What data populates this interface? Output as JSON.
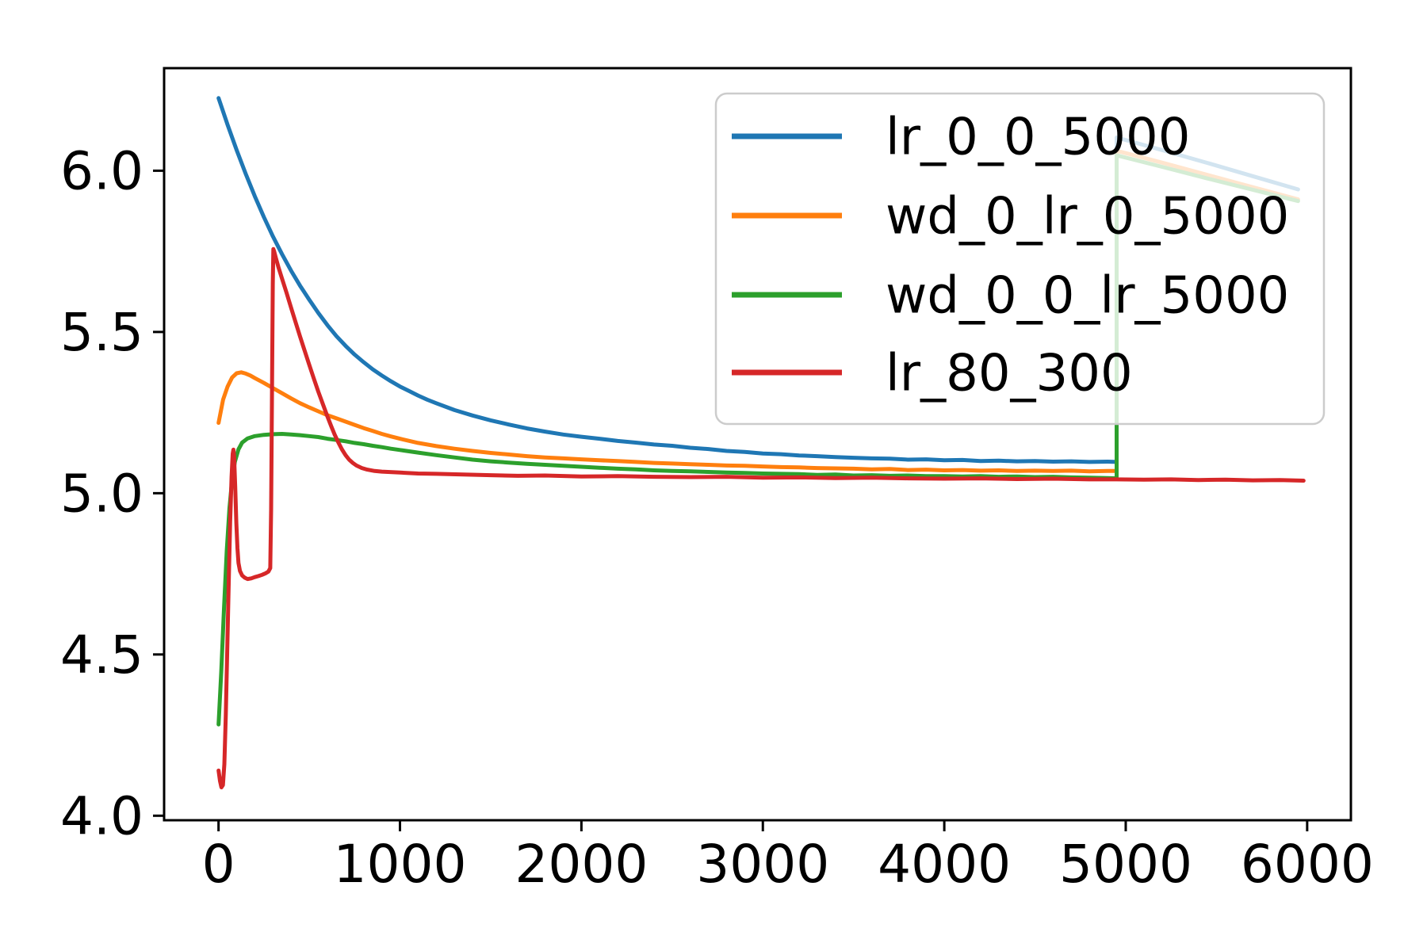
{
  "chart_data": {
    "type": "line",
    "title": "",
    "xlabel": "",
    "ylabel": "",
    "grid": false,
    "xlim": [
      -300,
      6241
    ],
    "ylim": [
      3.986,
      6.318
    ],
    "x_ticks": {
      "values": [
        0,
        1000,
        2000,
        3000,
        4000,
        5000,
        6000
      ],
      "labels": [
        "0",
        "1000",
        "2000",
        "3000",
        "4000",
        "5000",
        "6000"
      ]
    },
    "y_ticks": {
      "values": [
        4.0,
        4.5,
        5.0,
        5.5,
        6.0
      ],
      "labels": [
        "4.0",
        "4.5",
        "5.0",
        "5.5",
        "6.0"
      ]
    },
    "legend": {
      "position": "upper right",
      "frame_alpha": 0.8,
      "edge_color": "#cccccc",
      "entries": [
        "lr_0_0_5000",
        "wd_0_lr_0_5000",
        "wd_0_0_lr_5000",
        "lr_80_300"
      ]
    },
    "series": [
      {
        "name": "lr_0_0_5000",
        "color": "#1f77b4",
        "points": [
          [
            0,
            6.225
          ],
          [
            50,
            6.142
          ],
          [
            100,
            6.064
          ],
          [
            150,
            5.99
          ],
          [
            200,
            5.921
          ],
          [
            250,
            5.856
          ],
          [
            300,
            5.796
          ],
          [
            350,
            5.741
          ],
          [
            400,
            5.69
          ],
          [
            450,
            5.643
          ],
          [
            500,
            5.6
          ],
          [
            550,
            5.559
          ],
          [
            600,
            5.521
          ],
          [
            650,
            5.487
          ],
          [
            700,
            5.457
          ],
          [
            750,
            5.43
          ],
          [
            800,
            5.406
          ],
          [
            850,
            5.384
          ],
          [
            900,
            5.365
          ],
          [
            950,
            5.347
          ],
          [
            1000,
            5.331
          ],
          [
            1050,
            5.317
          ],
          [
            1100,
            5.303
          ],
          [
            1150,
            5.29
          ],
          [
            1200,
            5.279
          ],
          [
            1300,
            5.258
          ],
          [
            1400,
            5.241
          ],
          [
            1500,
            5.226
          ],
          [
            1600,
            5.213
          ],
          [
            1700,
            5.201
          ],
          [
            1800,
            5.191
          ],
          [
            1900,
            5.182
          ],
          [
            2000,
            5.175
          ],
          [
            2100,
            5.169
          ],
          [
            2200,
            5.162
          ],
          [
            2300,
            5.157
          ],
          [
            2400,
            5.151
          ],
          [
            2500,
            5.147
          ],
          [
            2600,
            5.141
          ],
          [
            2700,
            5.137
          ],
          [
            2800,
            5.131
          ],
          [
            2900,
            5.128
          ],
          [
            3000,
            5.123
          ],
          [
            3100,
            5.121
          ],
          [
            3200,
            5.117
          ],
          [
            3300,
            5.115
          ],
          [
            3400,
            5.112
          ],
          [
            3500,
            5.11
          ],
          [
            3600,
            5.108
          ],
          [
            3700,
            5.107
          ],
          [
            3800,
            5.104
          ],
          [
            3900,
            5.105
          ],
          [
            4000,
            5.102
          ],
          [
            4100,
            5.103
          ],
          [
            4200,
            5.1
          ],
          [
            4300,
            5.101
          ],
          [
            4400,
            5.099
          ],
          [
            4500,
            5.1
          ],
          [
            4600,
            5.098
          ],
          [
            4700,
            5.099
          ],
          [
            4800,
            5.097
          ],
          [
            4900,
            5.098
          ],
          [
            4950,
            5.097
          ],
          [
            4950,
            6.103
          ],
          [
            5200,
            6.064
          ],
          [
            5450,
            6.024
          ],
          [
            5700,
            5.983
          ],
          [
            5950,
            5.942
          ]
        ]
      },
      {
        "name": "wd_0_lr_0_5000",
        "color": "#ff7f0e",
        "points": [
          [
            0,
            5.218
          ],
          [
            25,
            5.29
          ],
          [
            50,
            5.331
          ],
          [
            75,
            5.359
          ],
          [
            100,
            5.372
          ],
          [
            125,
            5.375
          ],
          [
            150,
            5.371
          ],
          [
            175,
            5.365
          ],
          [
            200,
            5.357
          ],
          [
            250,
            5.342
          ],
          [
            300,
            5.326
          ],
          [
            350,
            5.31
          ],
          [
            400,
            5.294
          ],
          [
            450,
            5.279
          ],
          [
            500,
            5.266
          ],
          [
            550,
            5.254
          ],
          [
            600,
            5.242
          ],
          [
            650,
            5.232
          ],
          [
            700,
            5.222
          ],
          [
            750,
            5.212
          ],
          [
            800,
            5.202
          ],
          [
            850,
            5.193
          ],
          [
            900,
            5.184
          ],
          [
            950,
            5.176
          ],
          [
            1000,
            5.169
          ],
          [
            1100,
            5.156
          ],
          [
            1200,
            5.146
          ],
          [
            1300,
            5.138
          ],
          [
            1400,
            5.131
          ],
          [
            1500,
            5.125
          ],
          [
            1600,
            5.12
          ],
          [
            1700,
            5.115
          ],
          [
            1800,
            5.111
          ],
          [
            1900,
            5.108
          ],
          [
            2000,
            5.105
          ],
          [
            2100,
            5.102
          ],
          [
            2200,
            5.1
          ],
          [
            2300,
            5.097
          ],
          [
            2400,
            5.094
          ],
          [
            2500,
            5.092
          ],
          [
            2600,
            5.09
          ],
          [
            2700,
            5.088
          ],
          [
            2800,
            5.086
          ],
          [
            2900,
            5.085
          ],
          [
            3000,
            5.083
          ],
          [
            3100,
            5.081
          ],
          [
            3200,
            5.08
          ],
          [
            3300,
            5.078
          ],
          [
            3400,
            5.077
          ],
          [
            3500,
            5.076
          ],
          [
            3600,
            5.074
          ],
          [
            3700,
            5.075
          ],
          [
            3800,
            5.072
          ],
          [
            3900,
            5.073
          ],
          [
            4000,
            5.071
          ],
          [
            4100,
            5.072
          ],
          [
            4200,
            5.07
          ],
          [
            4300,
            5.071
          ],
          [
            4400,
            5.069
          ],
          [
            4500,
            5.07
          ],
          [
            4600,
            5.069
          ],
          [
            4700,
            5.07
          ],
          [
            4800,
            5.068
          ],
          [
            4900,
            5.069
          ],
          [
            4950,
            5.069
          ],
          [
            4950,
            6.062
          ],
          [
            5200,
            6.025
          ],
          [
            5450,
            5.987
          ],
          [
            5700,
            5.949
          ],
          [
            5950,
            5.911
          ]
        ]
      },
      {
        "name": "wd_0_0_lr_5000",
        "color": "#2ca02c",
        "points": [
          [
            0,
            4.283
          ],
          [
            15,
            4.447
          ],
          [
            30,
            4.64
          ],
          [
            45,
            4.821
          ],
          [
            60,
            4.953
          ],
          [
            75,
            5.042
          ],
          [
            90,
            5.098
          ],
          [
            110,
            5.136
          ],
          [
            130,
            5.157
          ],
          [
            160,
            5.17
          ],
          [
            200,
            5.177
          ],
          [
            250,
            5.181
          ],
          [
            300,
            5.183
          ],
          [
            350,
            5.184
          ],
          [
            400,
            5.182
          ],
          [
            450,
            5.18
          ],
          [
            500,
            5.177
          ],
          [
            550,
            5.174
          ],
          [
            600,
            5.169
          ],
          [
            650,
            5.165
          ],
          [
            700,
            5.161
          ],
          [
            750,
            5.156
          ],
          [
            800,
            5.152
          ],
          [
            850,
            5.147
          ],
          [
            900,
            5.143
          ],
          [
            950,
            5.138
          ],
          [
            1000,
            5.134
          ],
          [
            1100,
            5.126
          ],
          [
            1200,
            5.118
          ],
          [
            1300,
            5.111
          ],
          [
            1400,
            5.104
          ],
          [
            1500,
            5.099
          ],
          [
            1600,
            5.095
          ],
          [
            1700,
            5.091
          ],
          [
            1800,
            5.088
          ],
          [
            1900,
            5.085
          ],
          [
            2000,
            5.082
          ],
          [
            2100,
            5.079
          ],
          [
            2200,
            5.076
          ],
          [
            2300,
            5.074
          ],
          [
            2400,
            5.071
          ],
          [
            2500,
            5.069
          ],
          [
            2600,
            5.068
          ],
          [
            2700,
            5.066
          ],
          [
            2800,
            5.064
          ],
          [
            2900,
            5.063
          ],
          [
            3000,
            5.061
          ],
          [
            3100,
            5.06
          ],
          [
            3200,
            5.059
          ],
          [
            3300,
            5.057
          ],
          [
            3400,
            5.058
          ],
          [
            3500,
            5.055
          ],
          [
            3600,
            5.056
          ],
          [
            3700,
            5.054
          ],
          [
            3800,
            5.055
          ],
          [
            3900,
            5.053
          ],
          [
            4000,
            5.053
          ],
          [
            4100,
            5.052
          ],
          [
            4200,
            5.053
          ],
          [
            4300,
            5.051
          ],
          [
            4400,
            5.052
          ],
          [
            4500,
            5.05
          ],
          [
            4600,
            5.051
          ],
          [
            4700,
            5.049
          ],
          [
            4800,
            5.048
          ],
          [
            4900,
            5.047
          ],
          [
            4950,
            5.046
          ],
          [
            4950,
            6.048
          ],
          [
            5200,
            6.012
          ],
          [
            5450,
            5.976
          ],
          [
            5700,
            5.941
          ],
          [
            5950,
            5.906
          ]
        ]
      },
      {
        "name": "lr_80_300",
        "color": "#d62728",
        "points": [
          [
            0,
            4.14
          ],
          [
            8,
            4.108
          ],
          [
            16,
            4.088
          ],
          [
            24,
            4.095
          ],
          [
            32,
            4.16
          ],
          [
            40,
            4.31
          ],
          [
            48,
            4.51
          ],
          [
            56,
            4.72
          ],
          [
            64,
            4.91
          ],
          [
            72,
            5.05
          ],
          [
            78,
            5.122
          ],
          [
            82,
            5.135
          ],
          [
            86,
            5.114
          ],
          [
            92,
            5.02
          ],
          [
            98,
            4.908
          ],
          [
            104,
            4.83
          ],
          [
            110,
            4.784
          ],
          [
            118,
            4.759
          ],
          [
            130,
            4.745
          ],
          [
            145,
            4.738
          ],
          [
            160,
            4.734
          ],
          [
            180,
            4.736
          ],
          [
            200,
            4.74
          ],
          [
            220,
            4.743
          ],
          [
            240,
            4.747
          ],
          [
            260,
            4.752
          ],
          [
            275,
            4.757
          ],
          [
            285,
            4.768
          ],
          [
            290,
            4.95
          ],
          [
            295,
            5.35
          ],
          [
            299,
            5.65
          ],
          [
            302,
            5.757
          ],
          [
            306,
            5.751
          ],
          [
            315,
            5.731
          ],
          [
            330,
            5.701
          ],
          [
            350,
            5.665
          ],
          [
            375,
            5.621
          ],
          [
            400,
            5.575
          ],
          [
            425,
            5.53
          ],
          [
            450,
            5.485
          ],
          [
            475,
            5.441
          ],
          [
            500,
            5.398
          ],
          [
            525,
            5.356
          ],
          [
            550,
            5.315
          ],
          [
            575,
            5.276
          ],
          [
            600,
            5.238
          ],
          [
            620,
            5.209
          ],
          [
            640,
            5.182
          ],
          [
            660,
            5.158
          ],
          [
            680,
            5.136
          ],
          [
            700,
            5.118
          ],
          [
            720,
            5.104
          ],
          [
            740,
            5.094
          ],
          [
            760,
            5.086
          ],
          [
            790,
            5.078
          ],
          [
            820,
            5.073
          ],
          [
            860,
            5.069
          ],
          [
            900,
            5.067
          ],
          [
            1000,
            5.064
          ],
          [
            1100,
            5.061
          ],
          [
            1200,
            5.06
          ],
          [
            1350,
            5.058
          ],
          [
            1500,
            5.056
          ],
          [
            1650,
            5.054
          ],
          [
            1800,
            5.055
          ],
          [
            2000,
            5.052
          ],
          [
            2200,
            5.053
          ],
          [
            2400,
            5.051
          ],
          [
            2600,
            5.05
          ],
          [
            2800,
            5.051
          ],
          [
            3000,
            5.048
          ],
          [
            3200,
            5.049
          ],
          [
            3400,
            5.047
          ],
          [
            3600,
            5.048
          ],
          [
            3800,
            5.046
          ],
          [
            4000,
            5.045
          ],
          [
            4200,
            5.046
          ],
          [
            4400,
            5.044
          ],
          [
            4600,
            5.045
          ],
          [
            4800,
            5.043
          ],
          [
            4950,
            5.043
          ],
          [
            5100,
            5.042
          ],
          [
            5250,
            5.043
          ],
          [
            5400,
            5.041
          ],
          [
            5550,
            5.042
          ],
          [
            5700,
            5.04
          ],
          [
            5850,
            5.041
          ],
          [
            5980,
            5.039
          ]
        ]
      }
    ]
  }
}
